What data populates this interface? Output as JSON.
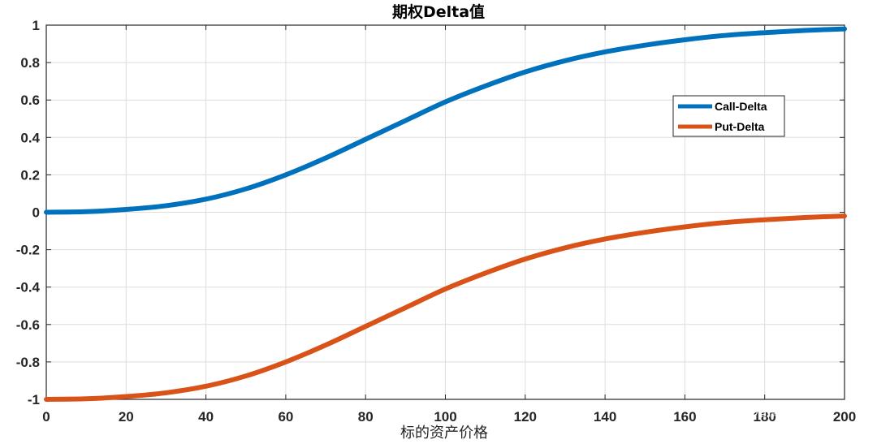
{
  "chart_data": {
    "type": "line",
    "title": "期权Delta值",
    "xlabel": "标的资产价格",
    "ylabel": "",
    "xlim": [
      0,
      200
    ],
    "ylim": [
      -1,
      1
    ],
    "grid": true,
    "legend_position": "top-right",
    "x_ticks": [
      "0",
      "20",
      "40",
      "60",
      "80",
      "100",
      "120",
      "140",
      "160",
      "180",
      "200"
    ],
    "y_ticks": [
      "-1",
      "-0.8",
      "-0.6",
      "-0.4",
      "-0.2",
      "0",
      "0.2",
      "0.4",
      "0.6",
      "0.8",
      "1"
    ],
    "x": [
      0,
      10,
      20,
      30,
      40,
      50,
      60,
      70,
      80,
      90,
      100,
      110,
      120,
      130,
      140,
      150,
      160,
      170,
      180,
      190,
      200
    ],
    "series": [
      {
        "name": "Call-Delta",
        "color": "#0072BD",
        "values": [
          0.0,
          0.003,
          0.015,
          0.035,
          0.07,
          0.125,
          0.2,
          0.29,
          0.39,
          0.49,
          0.59,
          0.675,
          0.75,
          0.81,
          0.857,
          0.893,
          0.922,
          0.945,
          0.96,
          0.972,
          0.98
        ]
      },
      {
        "name": "Put-Delta",
        "color": "#D95319",
        "values": [
          -1.0,
          -0.997,
          -0.985,
          -0.965,
          -0.93,
          -0.875,
          -0.8,
          -0.71,
          -0.61,
          -0.51,
          -0.41,
          -0.325,
          -0.25,
          -0.19,
          -0.143,
          -0.107,
          -0.078,
          -0.055,
          -0.04,
          -0.028,
          -0.02
        ]
      }
    ]
  },
  "watermark": "知乎 @清嵩"
}
